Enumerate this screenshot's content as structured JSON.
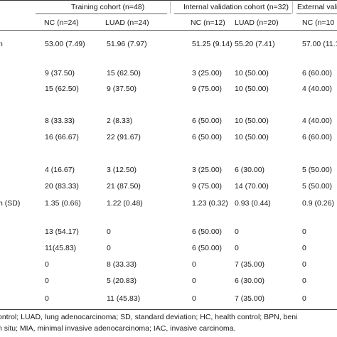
{
  "header": {
    "groups": [
      "Training cohort (n=48)",
      "Internal validation cohort (n=32)",
      "External vali"
    ],
    "subcolumns": [
      "NC (n=24)",
      "LUAD (n=24)",
      "NC (n=12)",
      "LUAD (n=20)",
      "NC (n=10"
    ]
  },
  "rows": [
    {
      "label": "n",
      "values": [
        "53.00 (7.49)",
        "51.96 (7.97)",
        "51.25 (9.14)",
        "55.20 (7.41)",
        "57.00 (11.1"
      ]
    },
    {
      "label": "",
      "values": [
        "9 (37.50)",
        "15 (62.50)",
        "3 (25.00)",
        "10 (50.00)",
        "6 (60.00)"
      ]
    },
    {
      "label": "",
      "values": [
        "15 (62.50)",
        "9 (37.50)",
        "9 (75.00)",
        "10 (50.00)",
        "4 (40.00)"
      ]
    },
    {
      "label": "",
      "values": [
        "8 (33.33)",
        "2 (8.33)",
        "6 (50.00)",
        "10 (50.00)",
        "4 (40.00)"
      ]
    },
    {
      "label": "",
      "values": [
        "16 (66.67)",
        "22 (91.67)",
        "6 (50.00)",
        "10 (50.00)",
        "6 (60.00)"
      ]
    },
    {
      "label": "",
      "values": [
        "4 (16.67)",
        "3 (12.50)",
        "3 (25.00)",
        "6 (30.00)",
        "5 (50.00)"
      ]
    },
    {
      "label": "",
      "values": [
        "20 (83.33)",
        "21 (87.50)",
        "9 (75.00)",
        "14 (70.00)",
        "5 (50.00)"
      ]
    },
    {
      "label": "n (SD)",
      "values": [
        "1.35 (0.66)",
        "1.22 (0.48)",
        "1.23 (0.32)",
        "0.93 (0.44)",
        "0.9 (0.26)"
      ]
    },
    {
      "label": "",
      "values": [
        "13 (54.17)",
        "0",
        "6 (50.00)",
        "0",
        "0"
      ]
    },
    {
      "label": "",
      "values": [
        "11(45.83)",
        "0",
        "6 (50.00)",
        "0",
        "0"
      ]
    },
    {
      "label": "",
      "values": [
        "0",
        "8 (33.33)",
        "0",
        "7 (35.00)",
        "0"
      ]
    },
    {
      "label": "",
      "values": [
        "0",
        "5 (20.83)",
        "0",
        "6 (30.00)",
        "0"
      ]
    },
    {
      "label": "",
      "values": [
        "0",
        "11 (45.83)",
        "0",
        "7 (35.00)",
        "0"
      ]
    }
  ],
  "footnotes": [
    "ontrol; LUAD, lung adenocarcinoma; SD, standard deviation; HC, health control; BPN, beni",
    "n situ; MIA, minimal invasive adenocarcinoma; IAC, invasive carcinoma."
  ]
}
